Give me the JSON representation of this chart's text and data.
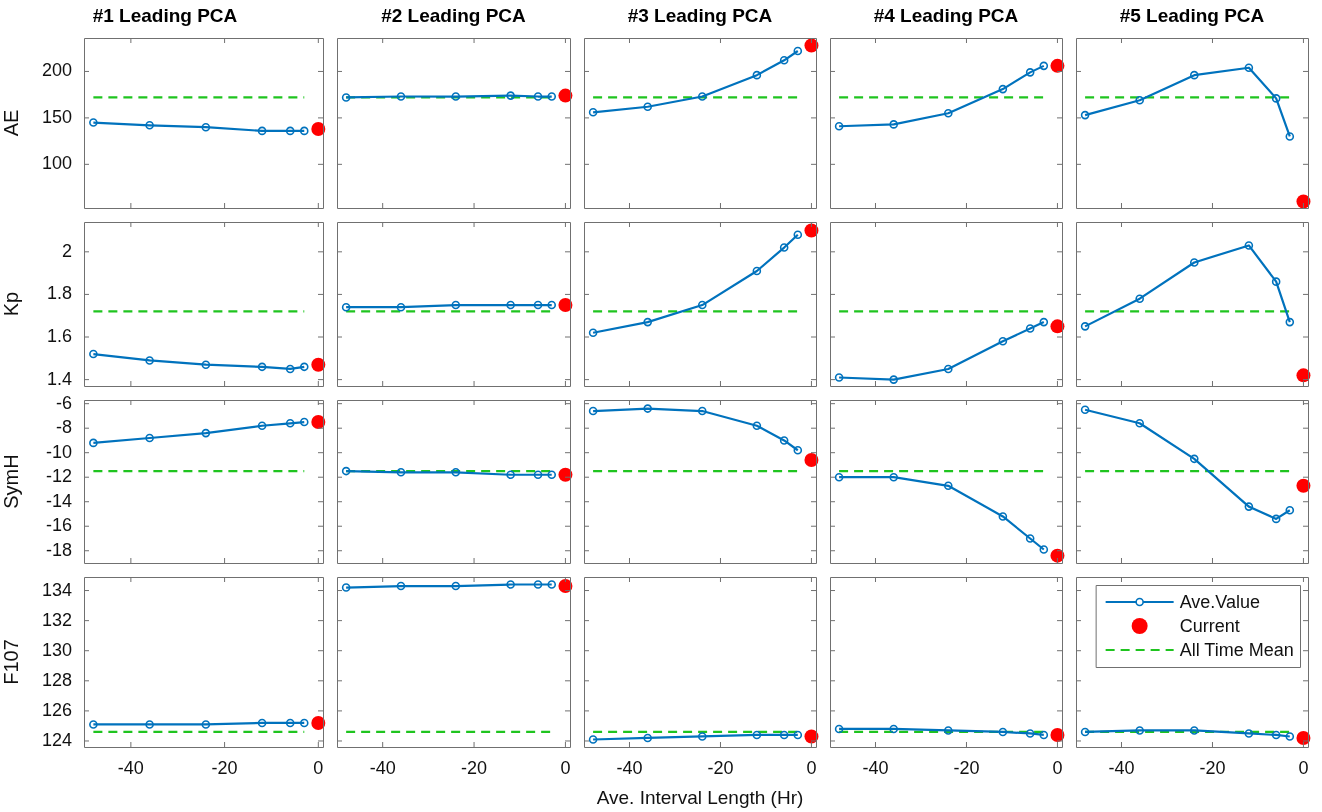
{
  "chart_data": [
    {
      "type": "line",
      "title": "#1 Leading PCA",
      "ylabel": "AE",
      "xlim": [
        -50,
        1
      ],
      "xticks": [
        -40,
        -20,
        0
      ],
      "ylim": [
        53,
        236
      ],
      "yticks": [
        100,
        150,
        200
      ],
      "tick_labels": "y",
      "series": [
        {
          "color": "#0072bd",
          "marker": "circle",
          "x": [
            -48,
            -36,
            -24,
            -12,
            -6,
            -3
          ],
          "values": [
            145,
            142,
            140,
            136,
            136,
            136
          ]
        },
        {
          "type": "scatter",
          "color": "#ff0000",
          "marker": "circle",
          "x": [
            0
          ],
          "values": [
            138
          ]
        }
      ],
      "ref_lines": [
        {
          "axis": "y",
          "value": 172,
          "color": "#1fc41f",
          "line_style": "dashed"
        }
      ]
    },
    {
      "type": "line",
      "title": "#2 Leading PCA",
      "xlim": [
        -50,
        1
      ],
      "xticks": [
        -40,
        -20,
        0
      ],
      "ylim": [
        53,
        236
      ],
      "yticks": [
        100,
        150,
        200
      ],
      "tick_labels": false,
      "series": [
        {
          "color": "#0072bd",
          "marker": "circle",
          "x": [
            -48,
            -36,
            -24,
            -12,
            -6,
            -3
          ],
          "values": [
            172,
            173,
            173,
            174,
            173,
            173
          ]
        },
        {
          "type": "scatter",
          "color": "#ff0000",
          "marker": "circle",
          "x": [
            0
          ],
          "values": [
            174
          ]
        }
      ],
      "ref_lines": [
        {
          "axis": "y",
          "value": 172,
          "color": "#1fc41f",
          "line_style": "dashed"
        }
      ]
    },
    {
      "type": "line",
      "title": "#3 Leading PCA",
      "xlim": [
        -50,
        1
      ],
      "xticks": [
        -40,
        -20,
        0
      ],
      "ylim": [
        53,
        236
      ],
      "yticks": [
        100,
        150,
        200
      ],
      "tick_labels": false,
      "series": [
        {
          "color": "#0072bd",
          "marker": "circle",
          "x": [
            -48,
            -36,
            -24,
            -12,
            -6,
            -3
          ],
          "values": [
            156,
            162,
            173,
            196,
            212,
            222
          ]
        },
        {
          "type": "scatter",
          "color": "#ff0000",
          "marker": "circle",
          "x": [
            0
          ],
          "values": [
            228
          ]
        }
      ],
      "ref_lines": [
        {
          "axis": "y",
          "value": 172,
          "color": "#1fc41f",
          "line_style": "dashed"
        }
      ]
    },
    {
      "type": "line",
      "title": "#4 Leading PCA",
      "xlim": [
        -50,
        1
      ],
      "xticks": [
        -40,
        -20,
        0
      ],
      "ylim": [
        53,
        236
      ],
      "yticks": [
        100,
        150,
        200
      ],
      "tick_labels": false,
      "series": [
        {
          "color": "#0072bd",
          "marker": "circle",
          "x": [
            -48,
            -36,
            -24,
            -12,
            -6,
            -3
          ],
          "values": [
            141,
            143,
            155,
            181,
            199,
            206
          ]
        },
        {
          "type": "scatter",
          "color": "#ff0000",
          "marker": "circle",
          "x": [
            0
          ],
          "values": [
            206
          ]
        }
      ],
      "ref_lines": [
        {
          "axis": "y",
          "value": 172,
          "color": "#1fc41f",
          "line_style": "dashed"
        }
      ]
    },
    {
      "type": "line",
      "title": "#5 Leading PCA",
      "xlim": [
        -50,
        1
      ],
      "xticks": [
        -40,
        -20,
        0
      ],
      "ylim": [
        53,
        236
      ],
      "yticks": [
        100,
        150,
        200
      ],
      "tick_labels": false,
      "series": [
        {
          "color": "#0072bd",
          "marker": "circle",
          "x": [
            -48,
            -36,
            -24,
            -12,
            -6,
            -3
          ],
          "values": [
            153,
            169,
            196,
            204,
            171,
            130
          ]
        },
        {
          "type": "scatter",
          "color": "#ff0000",
          "marker": "circle",
          "x": [
            0
          ],
          "values": [
            60
          ]
        }
      ],
      "ref_lines": [
        {
          "axis": "y",
          "value": 172,
          "color": "#1fc41f",
          "line_style": "dashed"
        }
      ]
    },
    {
      "type": "line",
      "ylabel": "Kp",
      "xlim": [
        -50,
        1
      ],
      "xticks": [
        -40,
        -20,
        0
      ],
      "ylim": [
        1.37,
        2.14
      ],
      "yticks": [
        1.4,
        1.6,
        1.8,
        2
      ],
      "tick_labels": "y",
      "series": [
        {
          "color": "#0072bd",
          "marker": "circle",
          "x": [
            -48,
            -36,
            -24,
            -12,
            -6,
            -3
          ],
          "values": [
            1.52,
            1.49,
            1.47,
            1.46,
            1.45,
            1.46
          ]
        },
        {
          "type": "scatter",
          "color": "#ff0000",
          "marker": "circle",
          "x": [
            0
          ],
          "values": [
            1.47
          ]
        }
      ],
      "ref_lines": [
        {
          "axis": "y",
          "value": 1.72,
          "color": "#1fc41f",
          "line_style": "dashed"
        }
      ]
    },
    {
      "type": "line",
      "xlim": [
        -50,
        1
      ],
      "xticks": [
        -40,
        -20,
        0
      ],
      "ylim": [
        1.37,
        2.14
      ],
      "yticks": [
        1.4,
        1.6,
        1.8,
        2
      ],
      "tick_labels": false,
      "series": [
        {
          "color": "#0072bd",
          "marker": "circle",
          "x": [
            -48,
            -36,
            -24,
            -12,
            -6,
            -3
          ],
          "values": [
            1.74,
            1.74,
            1.75,
            1.75,
            1.75,
            1.75
          ]
        },
        {
          "type": "scatter",
          "color": "#ff0000",
          "marker": "circle",
          "x": [
            0
          ],
          "values": [
            1.75
          ]
        }
      ],
      "ref_lines": [
        {
          "axis": "y",
          "value": 1.72,
          "color": "#1fc41f",
          "line_style": "dashed"
        }
      ]
    },
    {
      "type": "line",
      "xlim": [
        -50,
        1
      ],
      "xticks": [
        -40,
        -20,
        0
      ],
      "ylim": [
        1.37,
        2.14
      ],
      "yticks": [
        1.4,
        1.6,
        1.8,
        2
      ],
      "tick_labels": false,
      "series": [
        {
          "color": "#0072bd",
          "marker": "circle",
          "x": [
            -48,
            -36,
            -24,
            -12,
            -6,
            -3
          ],
          "values": [
            1.62,
            1.67,
            1.75,
            1.91,
            2.02,
            2.08
          ]
        },
        {
          "type": "scatter",
          "color": "#ff0000",
          "marker": "circle",
          "x": [
            0
          ],
          "values": [
            2.1
          ]
        }
      ],
      "ref_lines": [
        {
          "axis": "y",
          "value": 1.72,
          "color": "#1fc41f",
          "line_style": "dashed"
        }
      ]
    },
    {
      "type": "line",
      "xlim": [
        -50,
        1
      ],
      "xticks": [
        -40,
        -20,
        0
      ],
      "ylim": [
        1.37,
        2.14
      ],
      "yticks": [
        1.4,
        1.6,
        1.8,
        2
      ],
      "tick_labels": false,
      "series": [
        {
          "color": "#0072bd",
          "marker": "circle",
          "x": [
            -48,
            -36,
            -24,
            -12,
            -6,
            -3
          ],
          "values": [
            1.41,
            1.4,
            1.45,
            1.58,
            1.64,
            1.67
          ]
        },
        {
          "type": "scatter",
          "color": "#ff0000",
          "marker": "circle",
          "x": [
            0
          ],
          "values": [
            1.65
          ]
        }
      ],
      "ref_lines": [
        {
          "axis": "y",
          "value": 1.72,
          "color": "#1fc41f",
          "line_style": "dashed"
        }
      ]
    },
    {
      "type": "line",
      "xlim": [
        -50,
        1
      ],
      "xticks": [
        -40,
        -20,
        0
      ],
      "ylim": [
        1.37,
        2.14
      ],
      "yticks": [
        1.4,
        1.6,
        1.8,
        2
      ],
      "tick_labels": false,
      "series": [
        {
          "color": "#0072bd",
          "marker": "circle",
          "x": [
            -48,
            -36,
            -24,
            -12,
            -6,
            -3
          ],
          "values": [
            1.65,
            1.78,
            1.95,
            2.03,
            1.86,
            1.67
          ]
        },
        {
          "type": "scatter",
          "color": "#ff0000",
          "marker": "circle",
          "x": [
            0
          ],
          "values": [
            1.42
          ]
        }
      ],
      "ref_lines": [
        {
          "axis": "y",
          "value": 1.72,
          "color": "#1fc41f",
          "line_style": "dashed"
        }
      ]
    },
    {
      "type": "line",
      "ylabel": "SymH",
      "xlim": [
        -50,
        1
      ],
      "xticks": [
        -40,
        -20,
        0
      ],
      "ylim": [
        -19,
        -5.7
      ],
      "yticks": [
        -18,
        -16,
        -14,
        -12,
        -10,
        -8,
        -6
      ],
      "tick_labels": "y",
      "series": [
        {
          "color": "#0072bd",
          "marker": "circle",
          "x": [
            -48,
            -36,
            -24,
            -12,
            -6,
            -3
          ],
          "values": [
            -9.2,
            -8.8,
            -8.4,
            -7.8,
            -7.6,
            -7.5
          ]
        },
        {
          "type": "scatter",
          "color": "#ff0000",
          "marker": "circle",
          "x": [
            0
          ],
          "values": [
            -7.5
          ]
        }
      ],
      "ref_lines": [
        {
          "axis": "y",
          "value": -11.5,
          "color": "#1fc41f",
          "line_style": "dashed"
        }
      ]
    },
    {
      "type": "line",
      "xlim": [
        -50,
        1
      ],
      "xticks": [
        -40,
        -20,
        0
      ],
      "ylim": [
        -19,
        -5.7
      ],
      "yticks": [
        -18,
        -16,
        -14,
        -12,
        -10,
        -8,
        -6
      ],
      "tick_labels": false,
      "series": [
        {
          "color": "#0072bd",
          "marker": "circle",
          "x": [
            -48,
            -36,
            -24,
            -12,
            -6,
            -3
          ],
          "values": [
            -11.5,
            -11.6,
            -11.6,
            -11.8,
            -11.8,
            -11.8
          ]
        },
        {
          "type": "scatter",
          "color": "#ff0000",
          "marker": "circle",
          "x": [
            0
          ],
          "values": [
            -11.8
          ]
        }
      ],
      "ref_lines": [
        {
          "axis": "y",
          "value": -11.5,
          "color": "#1fc41f",
          "line_style": "dashed"
        }
      ]
    },
    {
      "type": "line",
      "xlim": [
        -50,
        1
      ],
      "xticks": [
        -40,
        -20,
        0
      ],
      "ylim": [
        -19,
        -5.7
      ],
      "yticks": [
        -18,
        -16,
        -14,
        -12,
        -10,
        -8,
        -6
      ],
      "tick_labels": false,
      "series": [
        {
          "color": "#0072bd",
          "marker": "circle",
          "x": [
            -48,
            -36,
            -24,
            -12,
            -6,
            -3
          ],
          "values": [
            -6.6,
            -6.4,
            -6.6,
            -7.8,
            -9.0,
            -9.8
          ]
        },
        {
          "type": "scatter",
          "color": "#ff0000",
          "marker": "circle",
          "x": [
            0
          ],
          "values": [
            -10.6
          ]
        }
      ],
      "ref_lines": [
        {
          "axis": "y",
          "value": -11.5,
          "color": "#1fc41f",
          "line_style": "dashed"
        }
      ]
    },
    {
      "type": "line",
      "xlim": [
        -50,
        1
      ],
      "xticks": [
        -40,
        -20,
        0
      ],
      "ylim": [
        -19,
        -5.7
      ],
      "yticks": [
        -18,
        -16,
        -14,
        -12,
        -10,
        -8,
        -6
      ],
      "tick_labels": false,
      "series": [
        {
          "color": "#0072bd",
          "marker": "circle",
          "x": [
            -48,
            -36,
            -24,
            -12,
            -6,
            -3
          ],
          "values": [
            -12.0,
            -12.0,
            -12.7,
            -15.2,
            -17.0,
            -17.9
          ]
        },
        {
          "type": "scatter",
          "color": "#ff0000",
          "marker": "circle",
          "x": [
            0
          ],
          "values": [
            -18.4
          ]
        }
      ],
      "ref_lines": [
        {
          "axis": "y",
          "value": -11.5,
          "color": "#1fc41f",
          "line_style": "dashed"
        }
      ]
    },
    {
      "type": "line",
      "xlim": [
        -50,
        1
      ],
      "xticks": [
        -40,
        -20,
        0
      ],
      "ylim": [
        -19,
        -5.7
      ],
      "yticks": [
        -18,
        -16,
        -14,
        -12,
        -10,
        -8,
        -6
      ],
      "tick_labels": false,
      "series": [
        {
          "color": "#0072bd",
          "marker": "circle",
          "x": [
            -48,
            -36,
            -24,
            -12,
            -6,
            -3
          ],
          "values": [
            -6.5,
            -7.6,
            -10.5,
            -14.4,
            -15.4,
            -14.7
          ]
        },
        {
          "type": "scatter",
          "color": "#ff0000",
          "marker": "circle",
          "x": [
            0
          ],
          "values": [
            -12.7
          ]
        }
      ],
      "ref_lines": [
        {
          "axis": "y",
          "value": -11.5,
          "color": "#1fc41f",
          "line_style": "dashed"
        }
      ]
    },
    {
      "type": "line",
      "ylabel": "F107",
      "xlim": [
        -50,
        1
      ],
      "xticks": [
        -40,
        -20,
        0
      ],
      "ylim": [
        123.6,
        134.9
      ],
      "yticks": [
        124,
        126,
        128,
        130,
        132,
        134
      ],
      "series": [
        {
          "color": "#0072bd",
          "marker": "circle",
          "x": [
            -48,
            -36,
            -24,
            -12,
            -6,
            -3
          ],
          "values": [
            125.1,
            125.1,
            125.1,
            125.2,
            125.2,
            125.2
          ]
        },
        {
          "type": "scatter",
          "color": "#ff0000",
          "marker": "circle",
          "x": [
            0
          ],
          "values": [
            125.2
          ]
        }
      ],
      "ref_lines": [
        {
          "axis": "y",
          "value": 124.6,
          "color": "#1fc41f",
          "line_style": "dashed"
        }
      ]
    },
    {
      "type": "line",
      "xlim": [
        -50,
        1
      ],
      "xticks": [
        -40,
        -20,
        0
      ],
      "ylim": [
        123.6,
        134.9
      ],
      "yticks": [
        124,
        126,
        128,
        130,
        132,
        134
      ],
      "tick_labels": "x",
      "series": [
        {
          "color": "#0072bd",
          "marker": "circle",
          "x": [
            -48,
            -36,
            -24,
            -12,
            -6,
            -3
          ],
          "values": [
            134.2,
            134.3,
            134.3,
            134.4,
            134.4,
            134.4
          ]
        },
        {
          "type": "scatter",
          "color": "#ff0000",
          "marker": "circle",
          "x": [
            0
          ],
          "values": [
            134.3
          ]
        }
      ],
      "ref_lines": [
        {
          "axis": "y",
          "value": 124.6,
          "color": "#1fc41f",
          "line_style": "dashed"
        }
      ]
    },
    {
      "type": "line",
      "xlabel": "Ave. Interval Length (Hr)",
      "xlim": [
        -50,
        1
      ],
      "xticks": [
        -40,
        -20,
        0
      ],
      "ylim": [
        123.6,
        134.9
      ],
      "yticks": [
        124,
        126,
        128,
        130,
        132,
        134
      ],
      "tick_labels": "x",
      "series": [
        {
          "color": "#0072bd",
          "marker": "circle",
          "x": [
            -48,
            -36,
            -24,
            -12,
            -6,
            -3
          ],
          "values": [
            124.1,
            124.2,
            124.3,
            124.4,
            124.4,
            124.4
          ]
        },
        {
          "type": "scatter",
          "color": "#ff0000",
          "marker": "circle",
          "x": [
            0
          ],
          "values": [
            124.3
          ]
        }
      ],
      "ref_lines": [
        {
          "axis": "y",
          "value": 124.6,
          "color": "#1fc41f",
          "line_style": "dashed"
        }
      ]
    },
    {
      "type": "line",
      "xlim": [
        -50,
        1
      ],
      "xticks": [
        -40,
        -20,
        0
      ],
      "ylim": [
        123.6,
        134.9
      ],
      "yticks": [
        124,
        126,
        128,
        130,
        132,
        134
      ],
      "tick_labels": "x",
      "series": [
        {
          "color": "#0072bd",
          "marker": "circle",
          "x": [
            -48,
            -36,
            -24,
            -12,
            -6,
            -3
          ],
          "values": [
            124.8,
            124.8,
            124.7,
            124.6,
            124.5,
            124.4
          ]
        },
        {
          "type": "scatter",
          "color": "#ff0000",
          "marker": "circle",
          "x": [
            0
          ],
          "values": [
            124.4
          ]
        }
      ],
      "ref_lines": [
        {
          "axis": "y",
          "value": 124.6,
          "color": "#1fc41f",
          "line_style": "dashed"
        }
      ]
    },
    {
      "type": "line",
      "xlim": [
        -50,
        1
      ],
      "xticks": [
        -40,
        -20,
        0
      ],
      "ylim": [
        123.6,
        134.9
      ],
      "yticks": [
        124,
        126,
        128,
        130,
        132,
        134
      ],
      "tick_labels": "x",
      "legend": "top right",
      "series": [
        {
          "name": "Ave.Value",
          "color": "#0072bd",
          "marker": "circle",
          "x": [
            -48,
            -36,
            -24,
            -12,
            -6,
            -3
          ],
          "values": [
            124.6,
            124.7,
            124.7,
            124.5,
            124.4,
            124.3
          ]
        },
        {
          "name": "Current",
          "type": "scatter",
          "color": "#ff0000",
          "marker": "circle",
          "x": [
            0
          ],
          "values": [
            124.2
          ]
        }
      ],
      "ref_lines": [
        {
          "axis": "y",
          "value": 124.6,
          "color": "#1fc41f",
          "line_style": "dashed",
          "label": "All Time Mean"
        }
      ]
    }
  ]
}
